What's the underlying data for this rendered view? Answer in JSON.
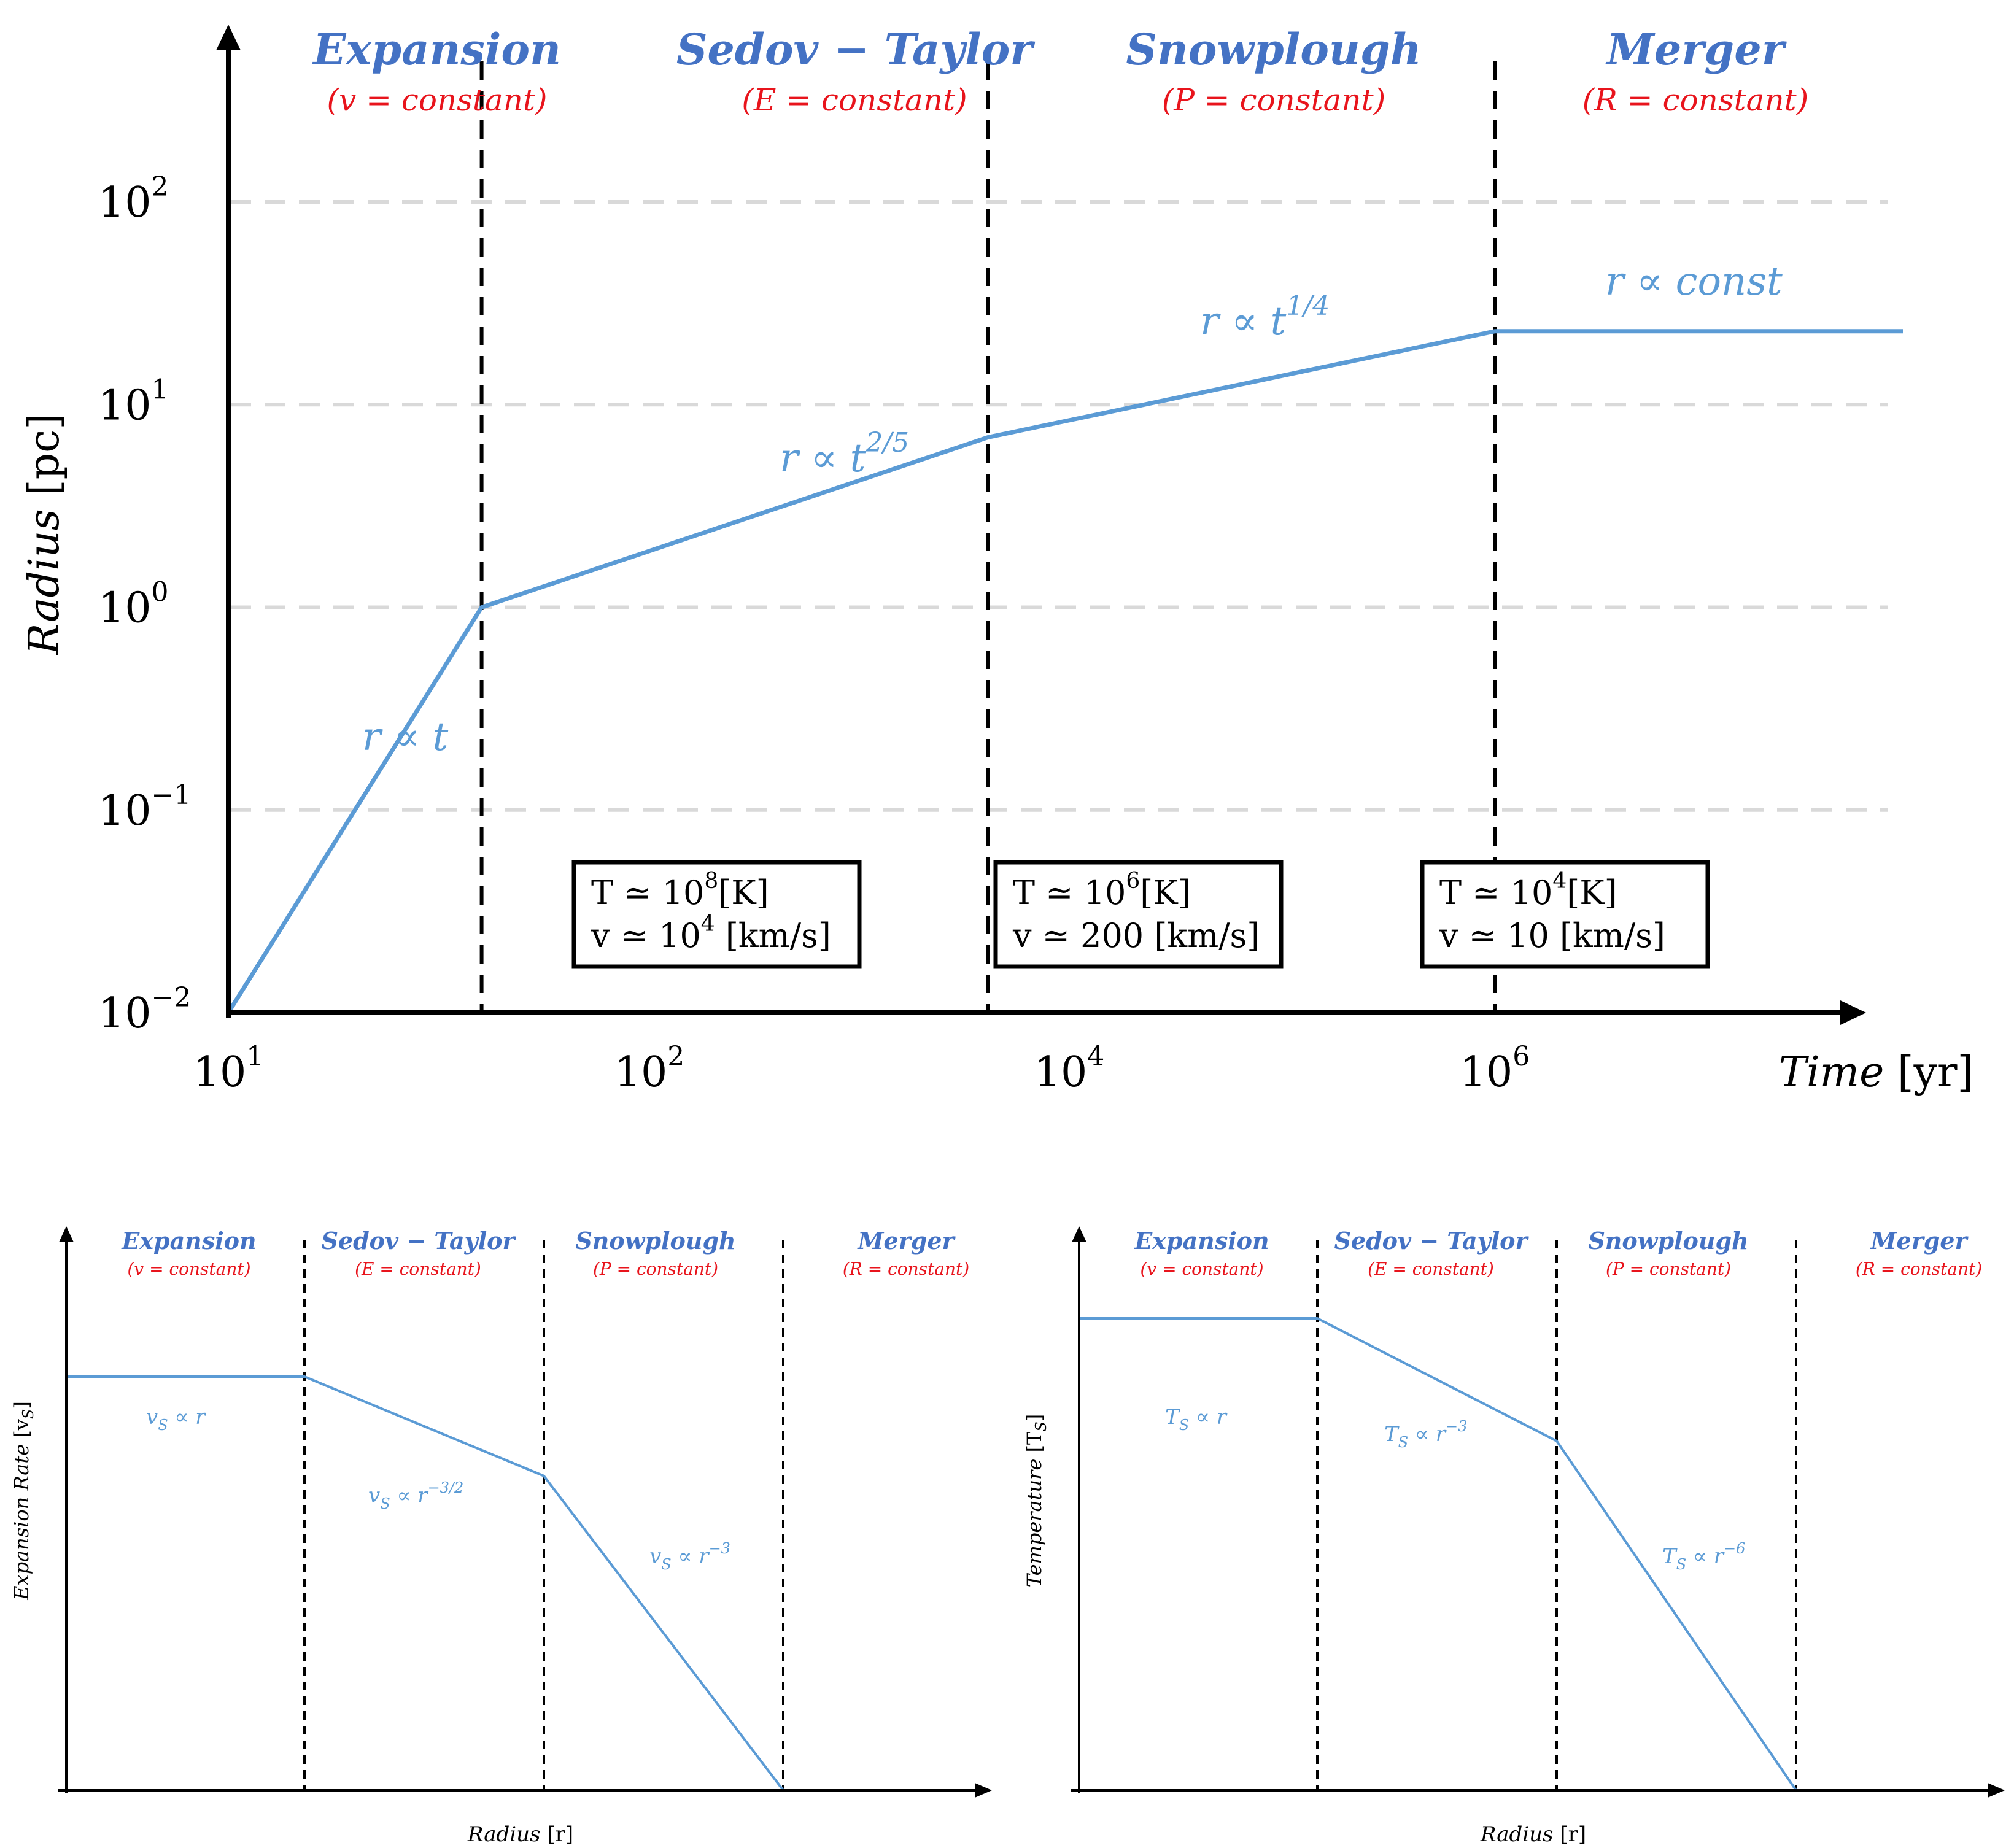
{
  "colors": {
    "blue": "#5B9BD5",
    "title_blue": "#4472C4",
    "red": "#E8141C",
    "axis": "#000000",
    "grid": "#D9D9D9"
  },
  "phases": [
    {
      "name": "Expansion",
      "condition": "(v =  constant)"
    },
    {
      "name": "Sedov − Taylor",
      "condition": "(E =  constant)"
    },
    {
      "name": "Snowplough",
      "condition": "(P =  constant)"
    },
    {
      "name": "Merger",
      "condition": "(R =  constant)"
    }
  ],
  "chart_data": [
    {
      "type": "line",
      "scale": "log-log",
      "xlabel": "Time",
      "xunit": "[yr]",
      "ylabel": "Radius",
      "yunit": "[pc]",
      "x_ticks": [
        {
          "base": "10",
          "exp": "1",
          "value": 10
        },
        {
          "base": "10",
          "exp": "2",
          "value": 100
        },
        {
          "base": "10",
          "exp": "4",
          "value": 10000
        },
        {
          "base": "10",
          "exp": "6",
          "value": 1000000
        }
      ],
      "y_ticks": [
        {
          "base": "10",
          "exp": "−2",
          "value": 0.01
        },
        {
          "base": "10",
          "exp": "−1",
          "value": 0.1
        },
        {
          "base": "10",
          "exp": "0",
          "value": 1
        },
        {
          "base": "10",
          "exp": "1",
          "value": 10
        },
        {
          "base": "10",
          "exp": "2",
          "value": 100
        }
      ],
      "grid": "horizontal dashed",
      "boundaries": [
        100,
        10000,
        1000000
      ],
      "series": [
        {
          "x": [
            10,
            100,
            10000,
            1000000,
            100000000
          ],
          "y": [
            0.01,
            1,
            6.9,
            23,
            23
          ]
        }
      ],
      "annotations": [
        {
          "text": "r ∝ t",
          "base": "r ∝ t",
          "sup": ""
        },
        {
          "text": "r ∝ t^2/5",
          "base": "r ∝ t",
          "sup": "2/5"
        },
        {
          "text": "r ∝ t^1/4",
          "base": "r ∝ t",
          "sup": "1/4"
        },
        {
          "text": "r ∝ const",
          "base": "r ∝ const",
          "sup": ""
        }
      ],
      "boxes": [
        {
          "t_label": "T ≃ 10",
          "t_exp": "8",
          "t_unit": "[K]",
          "v_label": "v ≃ 10",
          "v_exp": "4",
          "v_unit": " [km/s]"
        },
        {
          "t_label": "T ≃ 10",
          "t_exp": "6",
          "t_unit": "[K]",
          "v_label": "v ≃ 200",
          "v_exp": "",
          "v_unit": " [km/s]"
        },
        {
          "t_label": "T ≃ 10",
          "t_exp": "4",
          "t_unit": "[K]",
          "v_label": "v ≃ 10",
          "v_exp": "",
          "v_unit": " [km/s]"
        }
      ]
    },
    {
      "type": "line",
      "scale": "log-log (schematic, no ticks)",
      "xlabel": "Radius",
      "xunit": "[r]",
      "ylabel": "Expansion Rate",
      "yunit_base": "[v",
      "yunit_sub": "S",
      "yunit_end": "]",
      "series": [
        {
          "x": [
            0,
            1,
            2,
            3
          ],
          "y": [
            1.0,
            1.0,
            0.76,
            0.0
          ]
        }
      ],
      "annotations": [
        {
          "base": "v",
          "sub": "S",
          "rest": " ∝ r",
          "sup": ""
        },
        {
          "base": "v",
          "sub": "S",
          "rest": " ∝ r",
          "sup": "−3/2"
        },
        {
          "base": "v",
          "sub": "S",
          "rest": " ∝ r",
          "sup": "−3"
        }
      ]
    },
    {
      "type": "line",
      "scale": "log-log (schematic, no ticks)",
      "xlabel": "Radius",
      "xunit": "[r]",
      "ylabel": "Temperature",
      "yunit_base": "[T",
      "yunit_sub": "S",
      "yunit_end": "]",
      "series": [
        {
          "x": [
            0,
            1,
            2,
            3
          ],
          "y": [
            1.0,
            1.0,
            0.74,
            0.0
          ]
        }
      ],
      "annotations": [
        {
          "base": "T",
          "sub": "S",
          "rest": " ∝ r",
          "sup": ""
        },
        {
          "base": "T",
          "sub": "S",
          "rest": " ∝ r",
          "sup": "−3"
        },
        {
          "base": "T",
          "sub": "S",
          "rest": " ∝ r",
          "sup": "−6"
        }
      ]
    }
  ]
}
